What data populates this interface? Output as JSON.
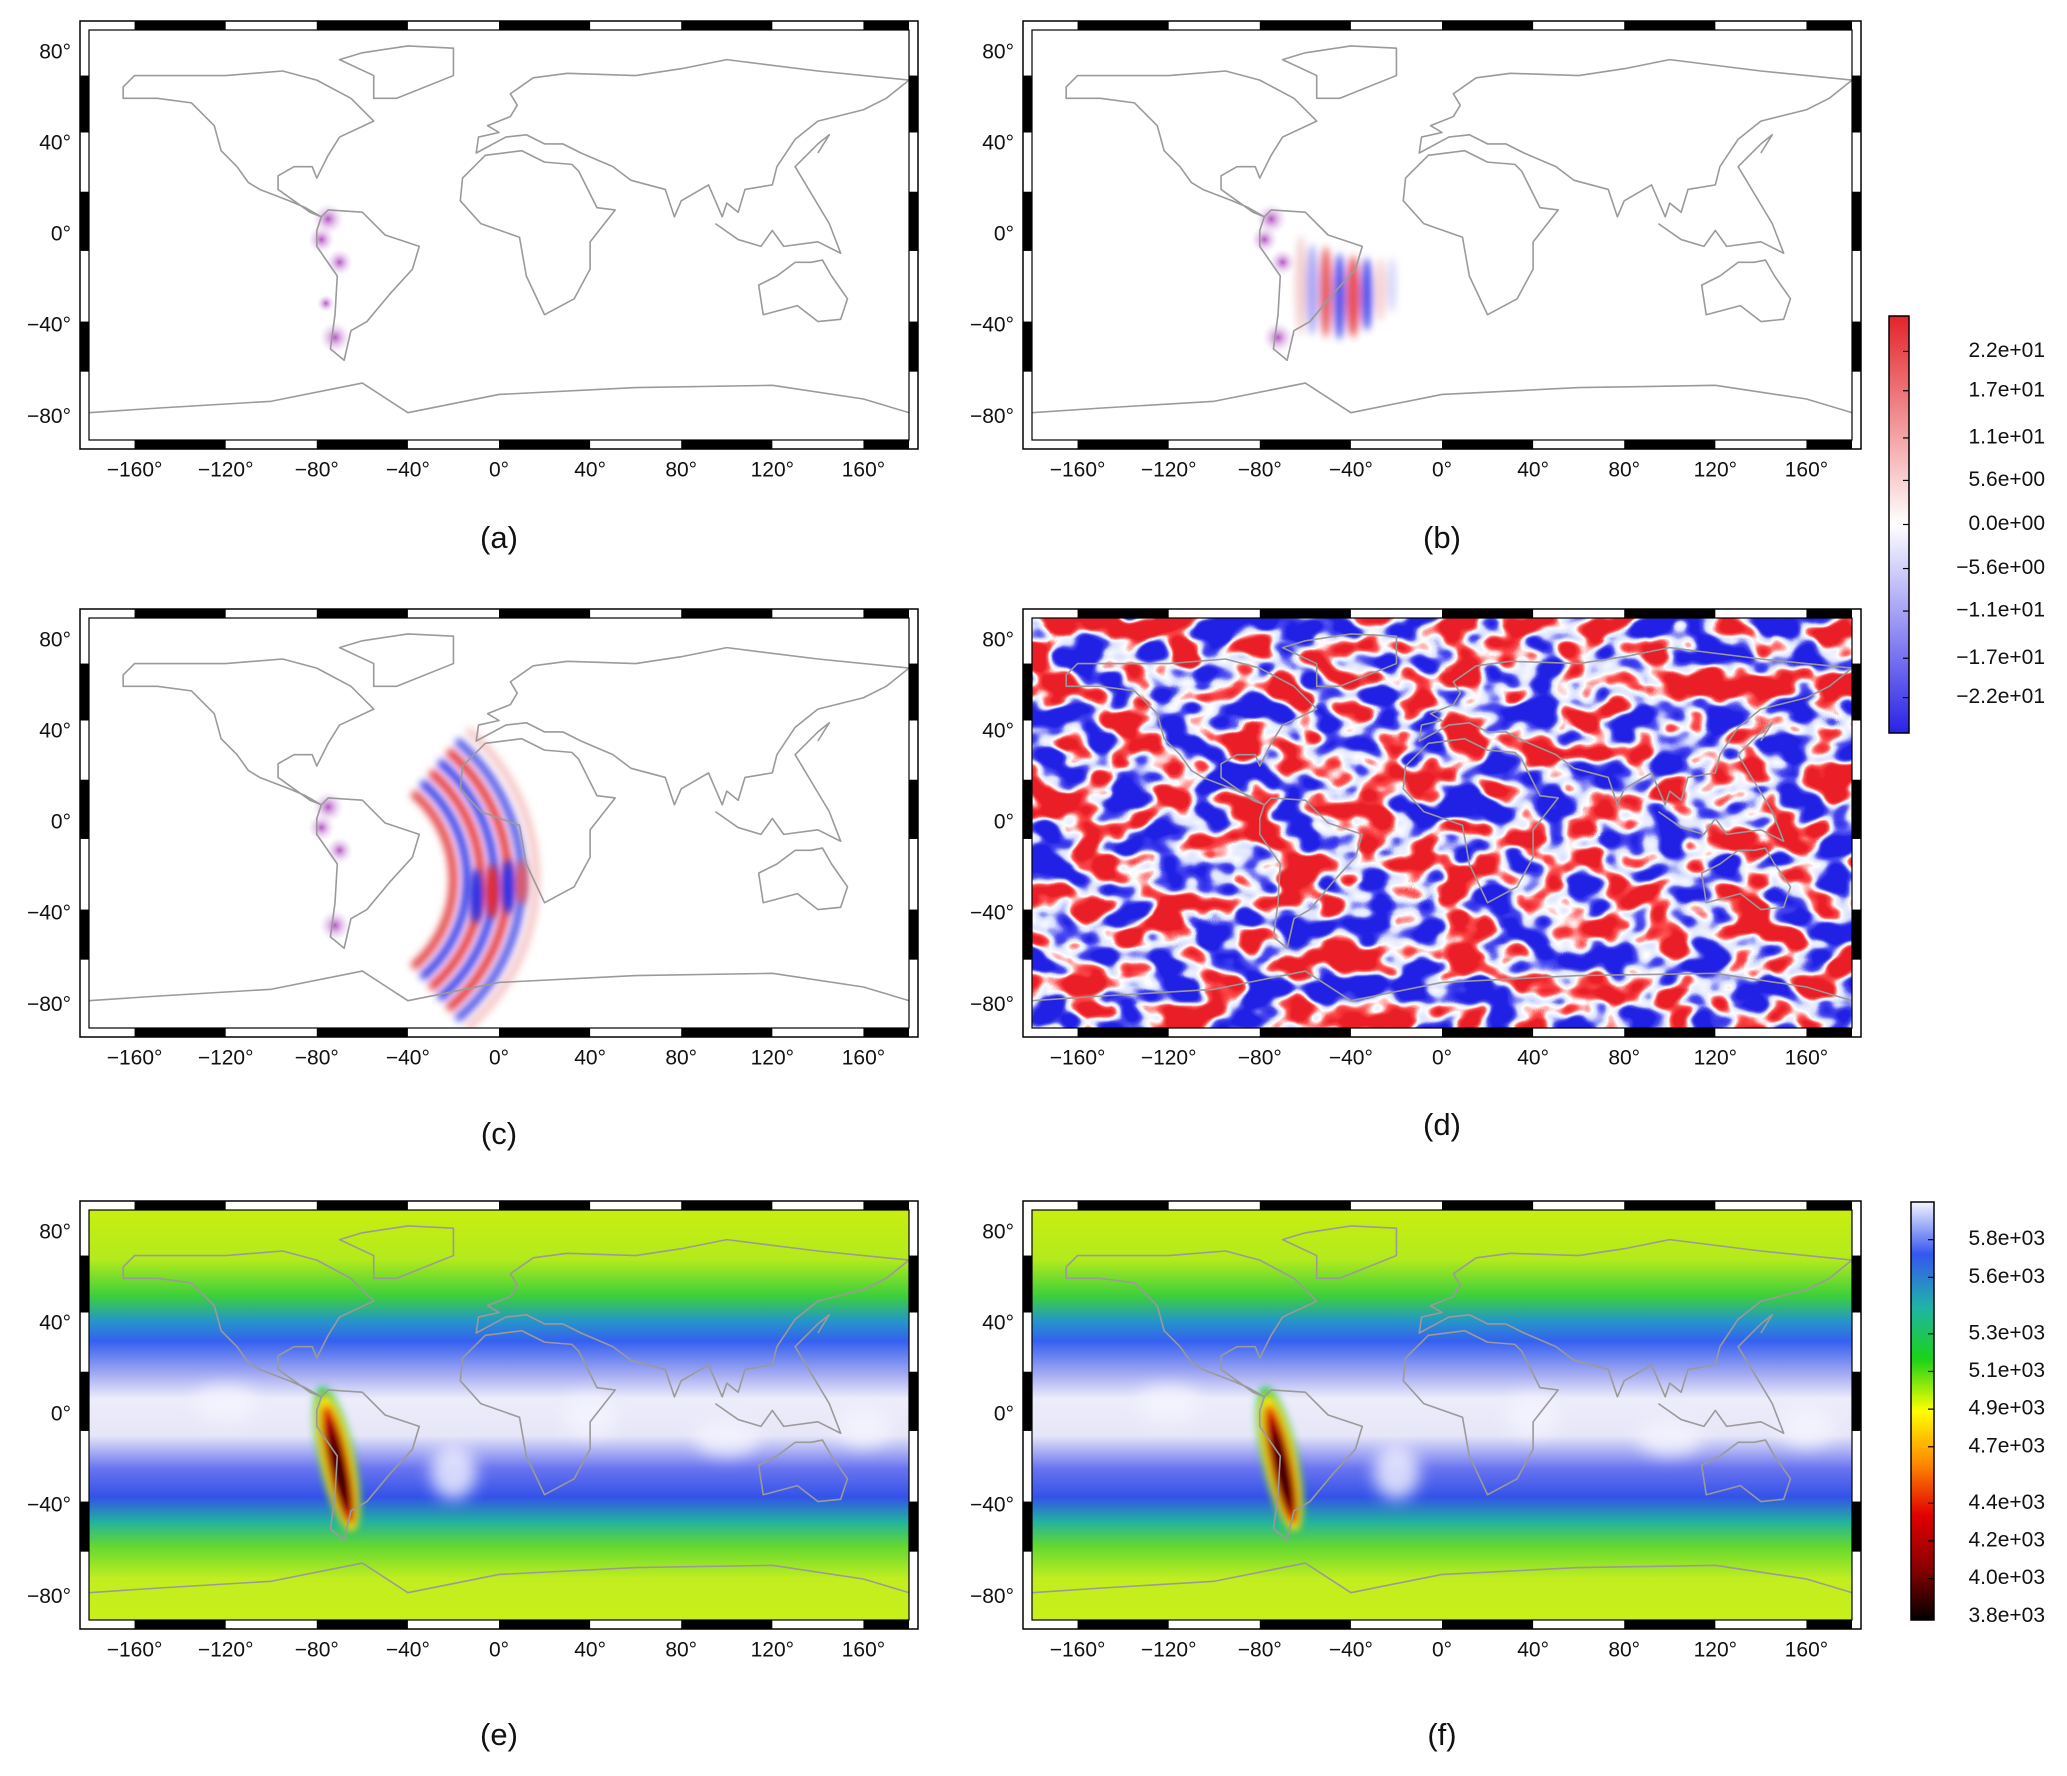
{
  "chart_data": [
    {
      "type": "map",
      "caption": "(a)",
      "xlim": [
        -180,
        180
      ],
      "ylim": [
        -90,
        90
      ],
      "xticks": [
        {
          "value": -160,
          "label": "−160°"
        },
        {
          "value": -120,
          "label": "−120°"
        },
        {
          "value": -80,
          "label": "−80°"
        },
        {
          "value": -40,
          "label": "−40°"
        },
        {
          "value": 0,
          "label": "0°"
        },
        {
          "value": 40,
          "label": "40°"
        },
        {
          "value": 80,
          "label": "80°"
        },
        {
          "value": 120,
          "label": "120°"
        },
        {
          "value": 160,
          "label": "160°"
        }
      ],
      "yticks": [
        {
          "value": 80,
          "label": "80°"
        },
        {
          "value": 40,
          "label": "40°"
        },
        {
          "value": 0,
          "label": "0°"
        },
        {
          "value": -40,
          "label": "−40°"
        },
        {
          "value": -80,
          "label": "−80°"
        }
      ]
    },
    {
      "type": "map",
      "caption": "(b)",
      "xlim": [
        -180,
        180
      ],
      "ylim": [
        -90,
        90
      ],
      "xticks": [
        {
          "value": -160,
          "label": "−160°"
        },
        {
          "value": -120,
          "label": "−120°"
        },
        {
          "value": -80,
          "label": "−80°"
        },
        {
          "value": -40,
          "label": "−40°"
        },
        {
          "value": 0,
          "label": "0°"
        },
        {
          "value": 40,
          "label": "40°"
        },
        {
          "value": 80,
          "label": "80°"
        },
        {
          "value": 120,
          "label": "120°"
        },
        {
          "value": 160,
          "label": "160°"
        }
      ],
      "yticks": [
        {
          "value": 80,
          "label": "80°"
        },
        {
          "value": 40,
          "label": "40°"
        },
        {
          "value": 0,
          "label": "0°"
        },
        {
          "value": -40,
          "label": "−40°"
        },
        {
          "value": -80,
          "label": "−80°"
        }
      ]
    },
    {
      "type": "map",
      "caption": "(c)",
      "xlim": [
        -180,
        180
      ],
      "ylim": [
        -90,
        90
      ],
      "xticks": [
        {
          "value": -160,
          "label": "−160°"
        },
        {
          "value": -120,
          "label": "−120°"
        },
        {
          "value": -80,
          "label": "−80°"
        },
        {
          "value": -40,
          "label": "−40°"
        },
        {
          "value": 0,
          "label": "0°"
        },
        {
          "value": 40,
          "label": "40°"
        },
        {
          "value": 80,
          "label": "80°"
        },
        {
          "value": 120,
          "label": "120°"
        },
        {
          "value": 160,
          "label": "160°"
        }
      ],
      "yticks": [
        {
          "value": 80,
          "label": "80°"
        },
        {
          "value": 40,
          "label": "40°"
        },
        {
          "value": 0,
          "label": "0°"
        },
        {
          "value": -40,
          "label": "−40°"
        },
        {
          "value": -80,
          "label": "−80°"
        }
      ]
    },
    {
      "type": "map",
      "caption": "(d)",
      "xlim": [
        -180,
        180
      ],
      "ylim": [
        -90,
        90
      ],
      "xticks": [
        {
          "value": -160,
          "label": "−160°"
        },
        {
          "value": -120,
          "label": "−120°"
        },
        {
          "value": -80,
          "label": "−80°"
        },
        {
          "value": -40,
          "label": "−40°"
        },
        {
          "value": 0,
          "label": "0°"
        },
        {
          "value": 40,
          "label": "40°"
        },
        {
          "value": 80,
          "label": "80°"
        },
        {
          "value": 120,
          "label": "120°"
        },
        {
          "value": 160,
          "label": "160°"
        }
      ],
      "yticks": [
        {
          "value": 80,
          "label": "80°"
        },
        {
          "value": 40,
          "label": "40°"
        },
        {
          "value": 0,
          "label": "0°"
        },
        {
          "value": -40,
          "label": "−40°"
        },
        {
          "value": -80,
          "label": "−80°"
        }
      ]
    },
    {
      "type": "map",
      "caption": "(e)",
      "xlim": [
        -180,
        180
      ],
      "ylim": [
        -90,
        90
      ],
      "xticks": [
        {
          "value": -160,
          "label": "−160°"
        },
        {
          "value": -120,
          "label": "−120°"
        },
        {
          "value": -80,
          "label": "−80°"
        },
        {
          "value": -40,
          "label": "−40°"
        },
        {
          "value": 0,
          "label": "0°"
        },
        {
          "value": 40,
          "label": "40°"
        },
        {
          "value": 80,
          "label": "80°"
        },
        {
          "value": 120,
          "label": "120°"
        },
        {
          "value": 160,
          "label": "160°"
        }
      ],
      "yticks": [
        {
          "value": 80,
          "label": "80°"
        },
        {
          "value": 40,
          "label": "40°"
        },
        {
          "value": 0,
          "label": "0°"
        },
        {
          "value": -40,
          "label": "−40°"
        },
        {
          "value": -80,
          "label": "−80°"
        }
      ]
    },
    {
      "type": "map",
      "caption": "(f)",
      "xlim": [
        -180,
        180
      ],
      "ylim": [
        -90,
        90
      ],
      "xticks": [
        {
          "value": -160,
          "label": "−160°"
        },
        {
          "value": -120,
          "label": "−120°"
        },
        {
          "value": -80,
          "label": "−80°"
        },
        {
          "value": -40,
          "label": "−40°"
        },
        {
          "value": 0,
          "label": "0°"
        },
        {
          "value": 40,
          "label": "40°"
        },
        {
          "value": 80,
          "label": "80°"
        },
        {
          "value": 120,
          "label": "120°"
        },
        {
          "value": 160,
          "label": "160°"
        }
      ],
      "yticks": [
        {
          "value": 80,
          "label": "80°"
        },
        {
          "value": 40,
          "label": "40°"
        },
        {
          "value": 0,
          "label": "0°"
        },
        {
          "value": -40,
          "label": "−40°"
        },
        {
          "value": -80,
          "label": "−80°"
        }
      ]
    },
    {
      "type": "colorbar",
      "ylim": [
        -26.5,
        26.5
      ],
      "colors": [
        "#2a22e6",
        "#ffffff",
        "#e3242b"
      ],
      "yticks": [
        {
          "value": 22,
          "label": "2.2e+01"
        },
        {
          "value": 17,
          "label": "1.7e+01"
        },
        {
          "value": 11,
          "label": "1.1e+01"
        },
        {
          "value": 5.6,
          "label": "5.6e+00"
        },
        {
          "value": 0,
          "label": "0.0e+00"
        },
        {
          "value": -5.6,
          "label": "−5.6e+00"
        },
        {
          "value": -11,
          "label": "−1.1e+01"
        },
        {
          "value": -17,
          "label": "−1.7e+01"
        },
        {
          "value": -22,
          "label": "−2.2e+01"
        }
      ]
    },
    {
      "type": "colorbar",
      "ylim": [
        3780,
        6000
      ],
      "colors": [
        "#000000",
        "#8b0000",
        "#e00000",
        "#ff8a00",
        "#ffff00",
        "#19d219",
        "#1fb3a8",
        "#3556f0",
        "#f4f4ff"
      ],
      "yticks": [
        {
          "value": 5800,
          "label": "5.8e+03"
        },
        {
          "value": 5600,
          "label": "5.6e+03"
        },
        {
          "value": 5300,
          "label": "5.3e+03"
        },
        {
          "value": 5100,
          "label": "5.1e+03"
        },
        {
          "value": 4900,
          "label": "4.9e+03"
        },
        {
          "value": 4700,
          "label": "4.7e+03"
        },
        {
          "value": 4400,
          "label": "4.4e+03"
        },
        {
          "value": 4200,
          "label": "4.2e+03"
        },
        {
          "value": 4000,
          "label": "4.0e+03"
        },
        {
          "value": 3800,
          "label": "3.8e+03"
        }
      ]
    }
  ]
}
